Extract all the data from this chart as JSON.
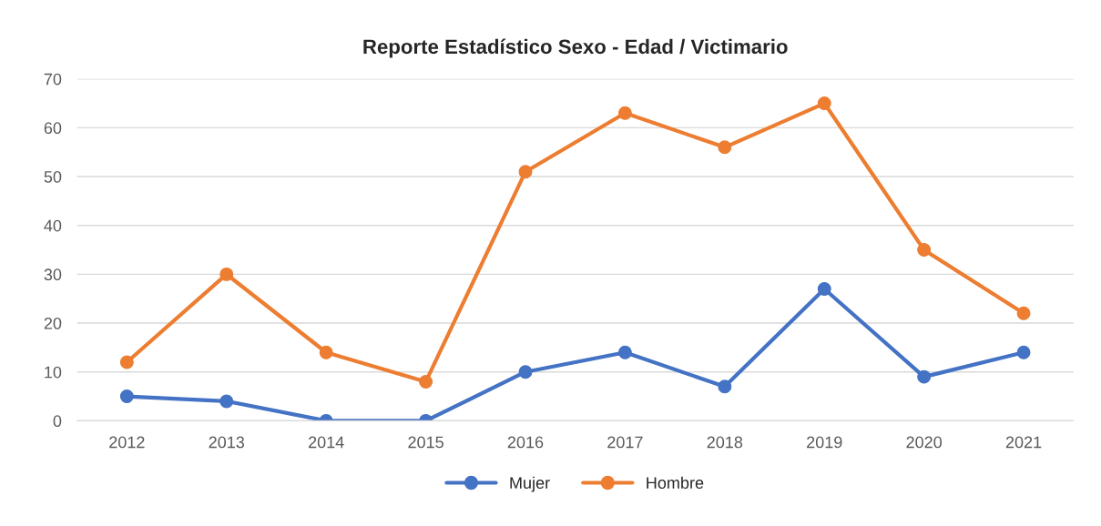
{
  "chart_data": {
    "type": "line",
    "title": "Reporte Estadístico Sexo - Edad / Victimario",
    "categories": [
      "2012",
      "2013",
      "2014",
      "2015",
      "2016",
      "2017",
      "2018",
      "2019",
      "2020",
      "2021"
    ],
    "series": [
      {
        "name": "Mujer",
        "color": "#4472c4",
        "values": [
          5,
          4,
          0,
          0,
          10,
          14,
          7,
          27,
          9,
          14
        ]
      },
      {
        "name": "Hombre",
        "color": "#ed7d31",
        "values": [
          12,
          30,
          14,
          8,
          51,
          63,
          56,
          65,
          35,
          22
        ]
      }
    ],
    "ylim": [
      0,
      70
    ],
    "yticks": [
      0,
      10,
      20,
      30,
      40,
      50,
      60,
      70
    ],
    "grid": "y",
    "legend": "bottom",
    "marker": "circle",
    "line_style": "solid"
  }
}
